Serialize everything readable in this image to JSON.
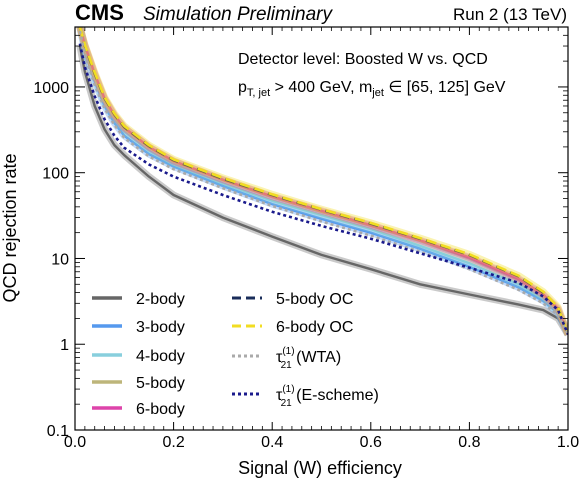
{
  "header": {
    "experiment": "CMS",
    "status": "Simulation Preliminary",
    "run": "Run 2 (13 TeV)"
  },
  "annotation": {
    "line1": "Detector level: Boosted W vs. QCD",
    "line2_pt": "p",
    "line2_pt_sub": "T, jet",
    "line2_cut": " > 400 GeV,  m",
    "line2_m_sub": "jet",
    "line2_range": " ∈ [65, 125] GeV"
  },
  "chart_data": {
    "type": "line",
    "title": "",
    "xlabel": "Signal (W) efficiency",
    "ylabel": "QCD rejection rate",
    "xlim": [
      0.0,
      1.0
    ],
    "ylim": [
      0.1,
      5000
    ],
    "yscale": "log",
    "x_ticks": [
      "0.0",
      "0.2",
      "0.4",
      "0.6",
      "0.8",
      "1.0"
    ],
    "y_ticks": [
      "0.1",
      "1",
      "10",
      "100",
      "1000"
    ],
    "legend_position": "bottom-left, two columns",
    "series": [
      {
        "name": "2-body",
        "color": "#666666",
        "style": "solid",
        "band": true,
        "x": [
          0.01,
          0.02,
          0.04,
          0.06,
          0.08,
          0.1,
          0.15,
          0.2,
          0.3,
          0.4,
          0.5,
          0.6,
          0.7,
          0.8,
          0.9,
          0.95,
          0.98,
          1.0
        ],
        "y": [
          3000,
          1500,
          600,
          320,
          210,
          160,
          90,
          55,
          30,
          18,
          11,
          7.5,
          5,
          3.8,
          2.9,
          2.5,
          2.0,
          1.3
        ]
      },
      {
        "name": "3-body",
        "color": "#5599ee",
        "style": "solid",
        "band": true,
        "x": [
          0.01,
          0.02,
          0.04,
          0.06,
          0.08,
          0.1,
          0.15,
          0.2,
          0.3,
          0.4,
          0.5,
          0.6,
          0.7,
          0.8,
          0.9,
          0.95,
          0.98,
          1.0
        ],
        "y": [
          5000,
          2600,
          1150,
          600,
          380,
          270,
          165,
          118,
          70,
          43,
          29,
          20,
          13,
          8,
          4.6,
          3.2,
          2.3,
          1.3
        ]
      },
      {
        "name": "4-body",
        "color": "#88cfdd",
        "style": "solid",
        "band": true,
        "x": [
          0.01,
          0.02,
          0.04,
          0.06,
          0.08,
          0.1,
          0.15,
          0.2,
          0.3,
          0.4,
          0.5,
          0.6,
          0.7,
          0.8,
          0.9,
          0.95,
          0.98,
          1.0
        ],
        "y": [
          5000,
          2800,
          1250,
          650,
          420,
          300,
          180,
          125,
          75,
          47,
          32,
          22,
          14,
          8.8,
          5.0,
          3.4,
          2.4,
          1.3
        ]
      },
      {
        "name": "5-body",
        "color": "#bdb57a",
        "style": "solid",
        "band": true,
        "x": [
          0.01,
          0.02,
          0.04,
          0.06,
          0.08,
          0.1,
          0.15,
          0.2,
          0.3,
          0.4,
          0.5,
          0.6,
          0.7,
          0.8,
          0.9,
          0.95,
          0.98,
          1.0
        ],
        "y": [
          5000,
          3000,
          1400,
          720,
          460,
          330,
          198,
          135,
          82,
          52,
          35,
          24,
          16,
          10,
          5.6,
          3.7,
          2.5,
          1.3
        ]
      },
      {
        "name": "6-body",
        "color": "#dd44aa",
        "style": "solid",
        "band": true,
        "x": [
          0.01,
          0.02,
          0.04,
          0.06,
          0.08,
          0.1,
          0.15,
          0.2,
          0.3,
          0.4,
          0.5,
          0.6,
          0.7,
          0.8,
          0.9,
          0.95,
          0.98,
          1.0
        ],
        "y": [
          5000,
          3050,
          1420,
          730,
          470,
          335,
          200,
          137,
          83,
          53,
          36,
          24.5,
          16.3,
          10.3,
          5.8,
          3.8,
          2.6,
          1.3
        ]
      },
      {
        "name": "5-body OC",
        "color": "#1a2d5a",
        "style": "dashed",
        "band": false,
        "x": [
          0.01,
          0.02,
          0.04,
          0.06,
          0.08,
          0.1,
          0.15,
          0.2,
          0.3,
          0.4,
          0.5,
          0.6,
          0.7,
          0.8,
          0.9,
          0.95,
          0.98,
          1.0
        ],
        "y": [
          5000,
          3000,
          1430,
          740,
          480,
          340,
          205,
          140,
          85,
          55,
          37,
          25.5,
          17,
          11,
          6.2,
          4.0,
          2.7,
          1.3
        ]
      },
      {
        "name": "6-body OC",
        "color": "#f2dd22",
        "style": "dashed",
        "band": true,
        "x": [
          0.01,
          0.02,
          0.04,
          0.06,
          0.08,
          0.1,
          0.15,
          0.2,
          0.3,
          0.4,
          0.5,
          0.6,
          0.7,
          0.8,
          0.9,
          0.95,
          0.98,
          1.0
        ],
        "y": [
          5000,
          3100,
          1480,
          760,
          490,
          350,
          210,
          143,
          87,
          56,
          37.5,
          26,
          17.3,
          11.2,
          6.3,
          4.1,
          2.7,
          1.3
        ]
      },
      {
        "name": "τ21(1) (WTA)",
        "color": "#aaaaaa",
        "style": "dotted",
        "band": false,
        "x": [
          0.01,
          0.02,
          0.04,
          0.06,
          0.08,
          0.1,
          0.15,
          0.2,
          0.3,
          0.4,
          0.5,
          0.6,
          0.7,
          0.8,
          0.9,
          0.95,
          0.98,
          1.0
        ],
        "y": [
          4500,
          2400,
          1050,
          560,
          360,
          255,
          155,
          110,
          66,
          41,
          27,
          18.5,
          12,
          7.5,
          4.3,
          3.0,
          2.2,
          1.3
        ]
      },
      {
        "name": "τ21(1) (E-scheme)",
        "color": "#1a1a8c",
        "style": "dotted",
        "band": false,
        "x": [
          0.01,
          0.02,
          0.04,
          0.06,
          0.08,
          0.1,
          0.15,
          0.2,
          0.3,
          0.4,
          0.5,
          0.6,
          0.7,
          0.8,
          0.9,
          0.95,
          0.98,
          1.0
        ],
        "y": [
          3200,
          1700,
          780,
          420,
          270,
          195,
          125,
          90,
          55,
          35,
          24,
          17,
          11.5,
          7.8,
          5.2,
          3.6,
          2.5,
          1.3
        ]
      }
    ]
  },
  "legend_labels": {
    "tau_symbol": "τ",
    "tau_sub": "21",
    "tau_sup": "(1)",
    "wta": " (WTA)",
    "escheme": " (E-scheme)"
  }
}
